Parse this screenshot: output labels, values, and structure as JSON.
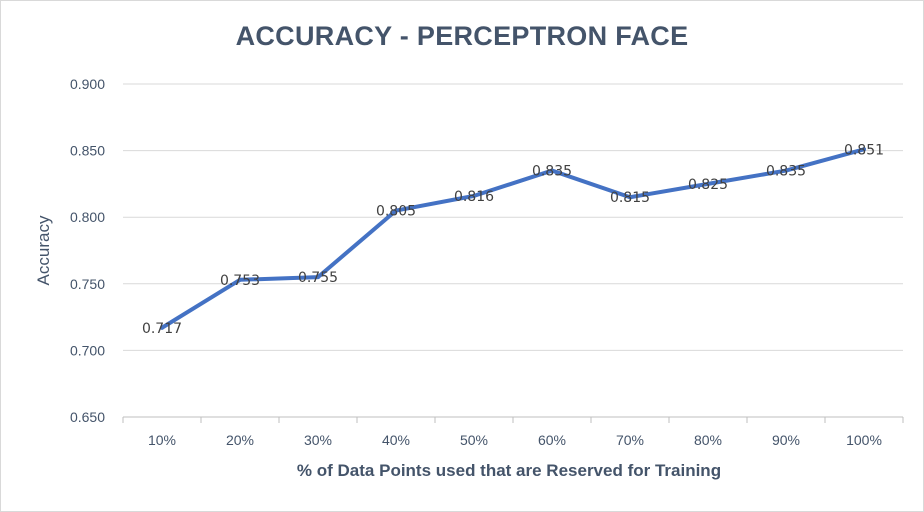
{
  "chart_data": {
    "type": "line",
    "title": "ACCURACY - PERCEPTRON FACE",
    "xlabel": "% of Data Points used that are Reserved for Training",
    "ylabel": "Accuracy",
    "categories": [
      "10%",
      "20%",
      "30%",
      "40%",
      "50%",
      "60%",
      "70%",
      "80%",
      "90%",
      "100%"
    ],
    "values": [
      0.717,
      0.753,
      0.755,
      0.805,
      0.816,
      0.835,
      0.815,
      0.825,
      0.835,
      0.851
    ],
    "value_labels": [
      "0.717",
      "0.753",
      "0.755",
      "0.805",
      "0.816",
      "0.835",
      "0.815",
      "0.825",
      "0.835",
      "0.851"
    ],
    "ylim": [
      0.65,
      0.9
    ],
    "yticks": [
      "0.650",
      "0.700",
      "0.750",
      "0.800",
      "0.850",
      "0.900"
    ],
    "grid": true,
    "legend": "none",
    "line_color": "#4472c4"
  }
}
